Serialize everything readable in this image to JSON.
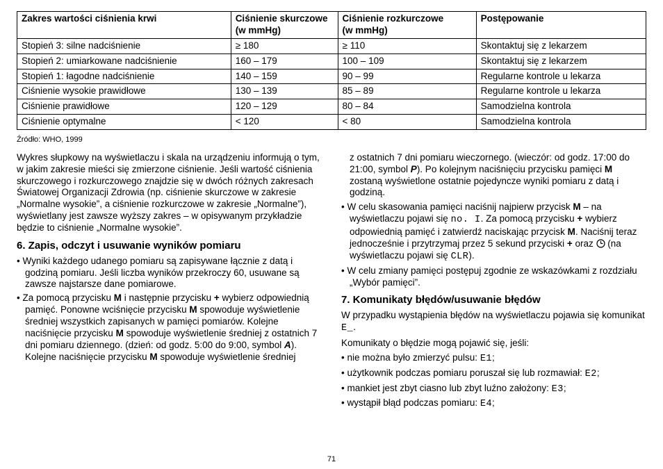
{
  "table": {
    "headers": {
      "range": "Zakres wartości ciśnienia krwi",
      "sys1": "Ciśnienie skurczowe",
      "sys2": "(w mmHg)",
      "dia1": "Ciśnienie rozkurczowe",
      "dia2": "(w mmHg)",
      "act": "Postępowanie"
    },
    "rows": [
      {
        "range": "Stopień 3: silne nadciśnienie",
        "sys": "≥ 180",
        "dia": "≥ 110",
        "act": "Skontaktuj się z lekarzem"
      },
      {
        "range": "Stopień 2: umiarkowane nadciśnienie",
        "sys": "160 – 179",
        "dia": "100 – 109",
        "act": "Skontaktuj się z lekarzem"
      },
      {
        "range": "Stopień 1: łagodne nadciśnienie",
        "sys": "140 – 159",
        "dia": "90 – 99",
        "act": "Regularne kontrole u lekarza"
      },
      {
        "range": "Ciśnienie wysokie prawidłowe",
        "sys": "130 – 139",
        "dia": "85 – 89",
        "act": "Regularne kontrole u lekarza"
      },
      {
        "range": "Ciśnienie prawidłowe",
        "sys": "120 – 129",
        "dia": "80 – 84",
        "act": "Samodzielna kontrola"
      },
      {
        "range": "Ciśnienie optymalne",
        "sys": "< 120",
        "dia": "< 80",
        "act": "Samodzielna kontrola"
      }
    ]
  },
  "source": "Źródło: WHO, 1999",
  "left": {
    "para": "Wykres słupkowy na wyświetlaczu i skala na urządzeniu informują o tym, w jakim zakresie mieści się zmierzone ciśnienie. Jeśli wartość ciśnienia skurczowego i rozkurczowego znajdzie się w dwóch różnych zakresach Światowej Organizacji Zdrowia (np. ciśnienie skurczowe w zakresie „Normalne wysokie”, a ciśnienie rozkurczowe w zakresie „Normalne”), wyświetlany jest zawsze wyższy zakres – w opisywanym przykładzie będzie to ciśnienie „Normalne wysokie”.",
    "h6": "6. Zapis, odczyt i usuwanie wyników pomiaru",
    "b1": "Wyniki każdego udanego pomiaru są zapisywane łącznie z datą i godziną pomiaru. Jeśli liczba wyników przekroczy 60, usuwane są zawsze najstarsze dane pomiarowe.",
    "b2a": "Za pomocą przycisku ",
    "b2M1": "M",
    "b2b": " i następnie przycisku ",
    "b2plus": "+",
    "b2c": " wybierz odpowiednią pamięć. Ponowne wciśnięcie przycisku ",
    "b2M2": "M",
    "b2d": " spowoduje wyświetlenie średniej wszystkich zapisanych w pamięci pomiarów. Kolejne naciśnięcie przycisku ",
    "b2M3": "M",
    "b2e": " spowoduje wyświetlenie średniej z ostatnich 7 dni pomiaru dziennego. (dzień: od godz. 5:00 do 9:00, symbol ",
    "b2A": "A",
    "b2f": "). Kolejne naciśnięcie przycisku ",
    "b2M4": "M",
    "b2g": " spowoduje wyświetlenie średniej"
  },
  "right": {
    "cont1": "z ostatnich 7 dni pomiaru wieczornego. (wieczór: od godz. 17:00 do 21:00, symbol ",
    "contP": "P",
    "cont2": "). Po kolejnym naciśnięciu przycisku pamięci ",
    "contM": "M",
    "cont3": " zostaną wyświetlone ostatnie pojedyncze wyniki pomiaru z datą i godziną.",
    "del1": "W celu skasowania pamięci naciśnij najpierw przycisk ",
    "delM1": "M",
    "del2": " – na wyświetlaczu pojawi się ",
    "delNo": "no.",
    "delI": " I",
    "del3": ". Za pomocą przycisku ",
    "delplus": "+",
    "del4": " wybierz odpowiednią pamięć i zatwierdź naciskając przycisk ",
    "delM2": "M",
    "del5": ". Naciśnij teraz jednocześnie i przytrzymaj przez 5 sekund przyciski ",
    "delplus2": "+",
    "del6": " oraz ",
    "del7": " (na wyświetlaczu pojawi się ",
    "delCLR": "CLR",
    "del8": ").",
    "chg": "W celu zmiany pamięci postępuj zgodnie ze wskazówkami z rozdziału „Wybór pamięci”.",
    "h7": "7. Komunikaty błędów/usuwanie błędów",
    "err_a": "W przypadku wystąpienia błędów na wyświetlaczu pojawia się komunikat ",
    "errE_": "E_",
    "err_b": ".",
    "errlist": "Komunikaty o błędzie mogą pojawić się, jeśli:",
    "e1a": "nie można było zmierzyć pulsu: ",
    "e1c": "E1",
    "e1b": ";",
    "e2a": "użytkownik podczas pomiaru poruszał się lub rozmawiał: ",
    "e2c": "E2",
    "e2b": ";",
    "e3a": "mankiet jest zbyt ciasno lub zbyt luźno założony: ",
    "e3c": "E3",
    "e3b": ";",
    "e4a": "wystąpił błąd podczas pomiaru: ",
    "e4c": "E4",
    "e4b": ";"
  },
  "page": "71"
}
